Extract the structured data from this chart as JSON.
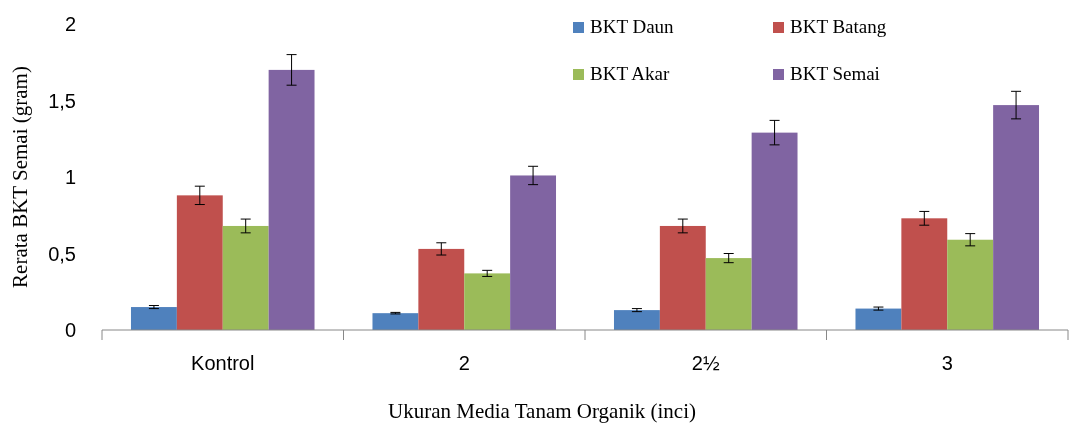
{
  "chart_data": {
    "type": "bar",
    "xlabel": "Ukuran Media Tanam Organik (inci)",
    "ylabel": "Rerata BKT Semai (gram)",
    "categories": [
      "Kontrol",
      "2",
      "2½",
      "3"
    ],
    "series": [
      {
        "name": "BKT Daun",
        "color": "#4f81bd",
        "values": [
          0.15,
          0.11,
          0.13,
          0.14
        ],
        "errors": [
          0.01,
          0.005,
          0.01,
          0.01
        ]
      },
      {
        "name": "BKT Batang",
        "color": "#c0504d",
        "values": [
          0.88,
          0.53,
          0.68,
          0.73
        ],
        "errors": [
          0.06,
          0.04,
          0.045,
          0.045
        ]
      },
      {
        "name": "BKT Akar",
        "color": "#9bbb59",
        "values": [
          0.68,
          0.37,
          0.47,
          0.59
        ],
        "errors": [
          0.045,
          0.02,
          0.03,
          0.04
        ]
      },
      {
        "name": "BKT Semai",
        "color": "#8064a2",
        "values": [
          1.7,
          1.01,
          1.29,
          1.47
        ],
        "errors": [
          0.1,
          0.06,
          0.08,
          0.09
        ]
      }
    ],
    "ylim": [
      0,
      2
    ],
    "yticks": [
      0,
      {
        "value": 0.5,
        "label": "0,5"
      },
      1,
      {
        "value": 1.5,
        "label": "1,5"
      },
      2
    ],
    "legend": "top right",
    "grid": false
  }
}
